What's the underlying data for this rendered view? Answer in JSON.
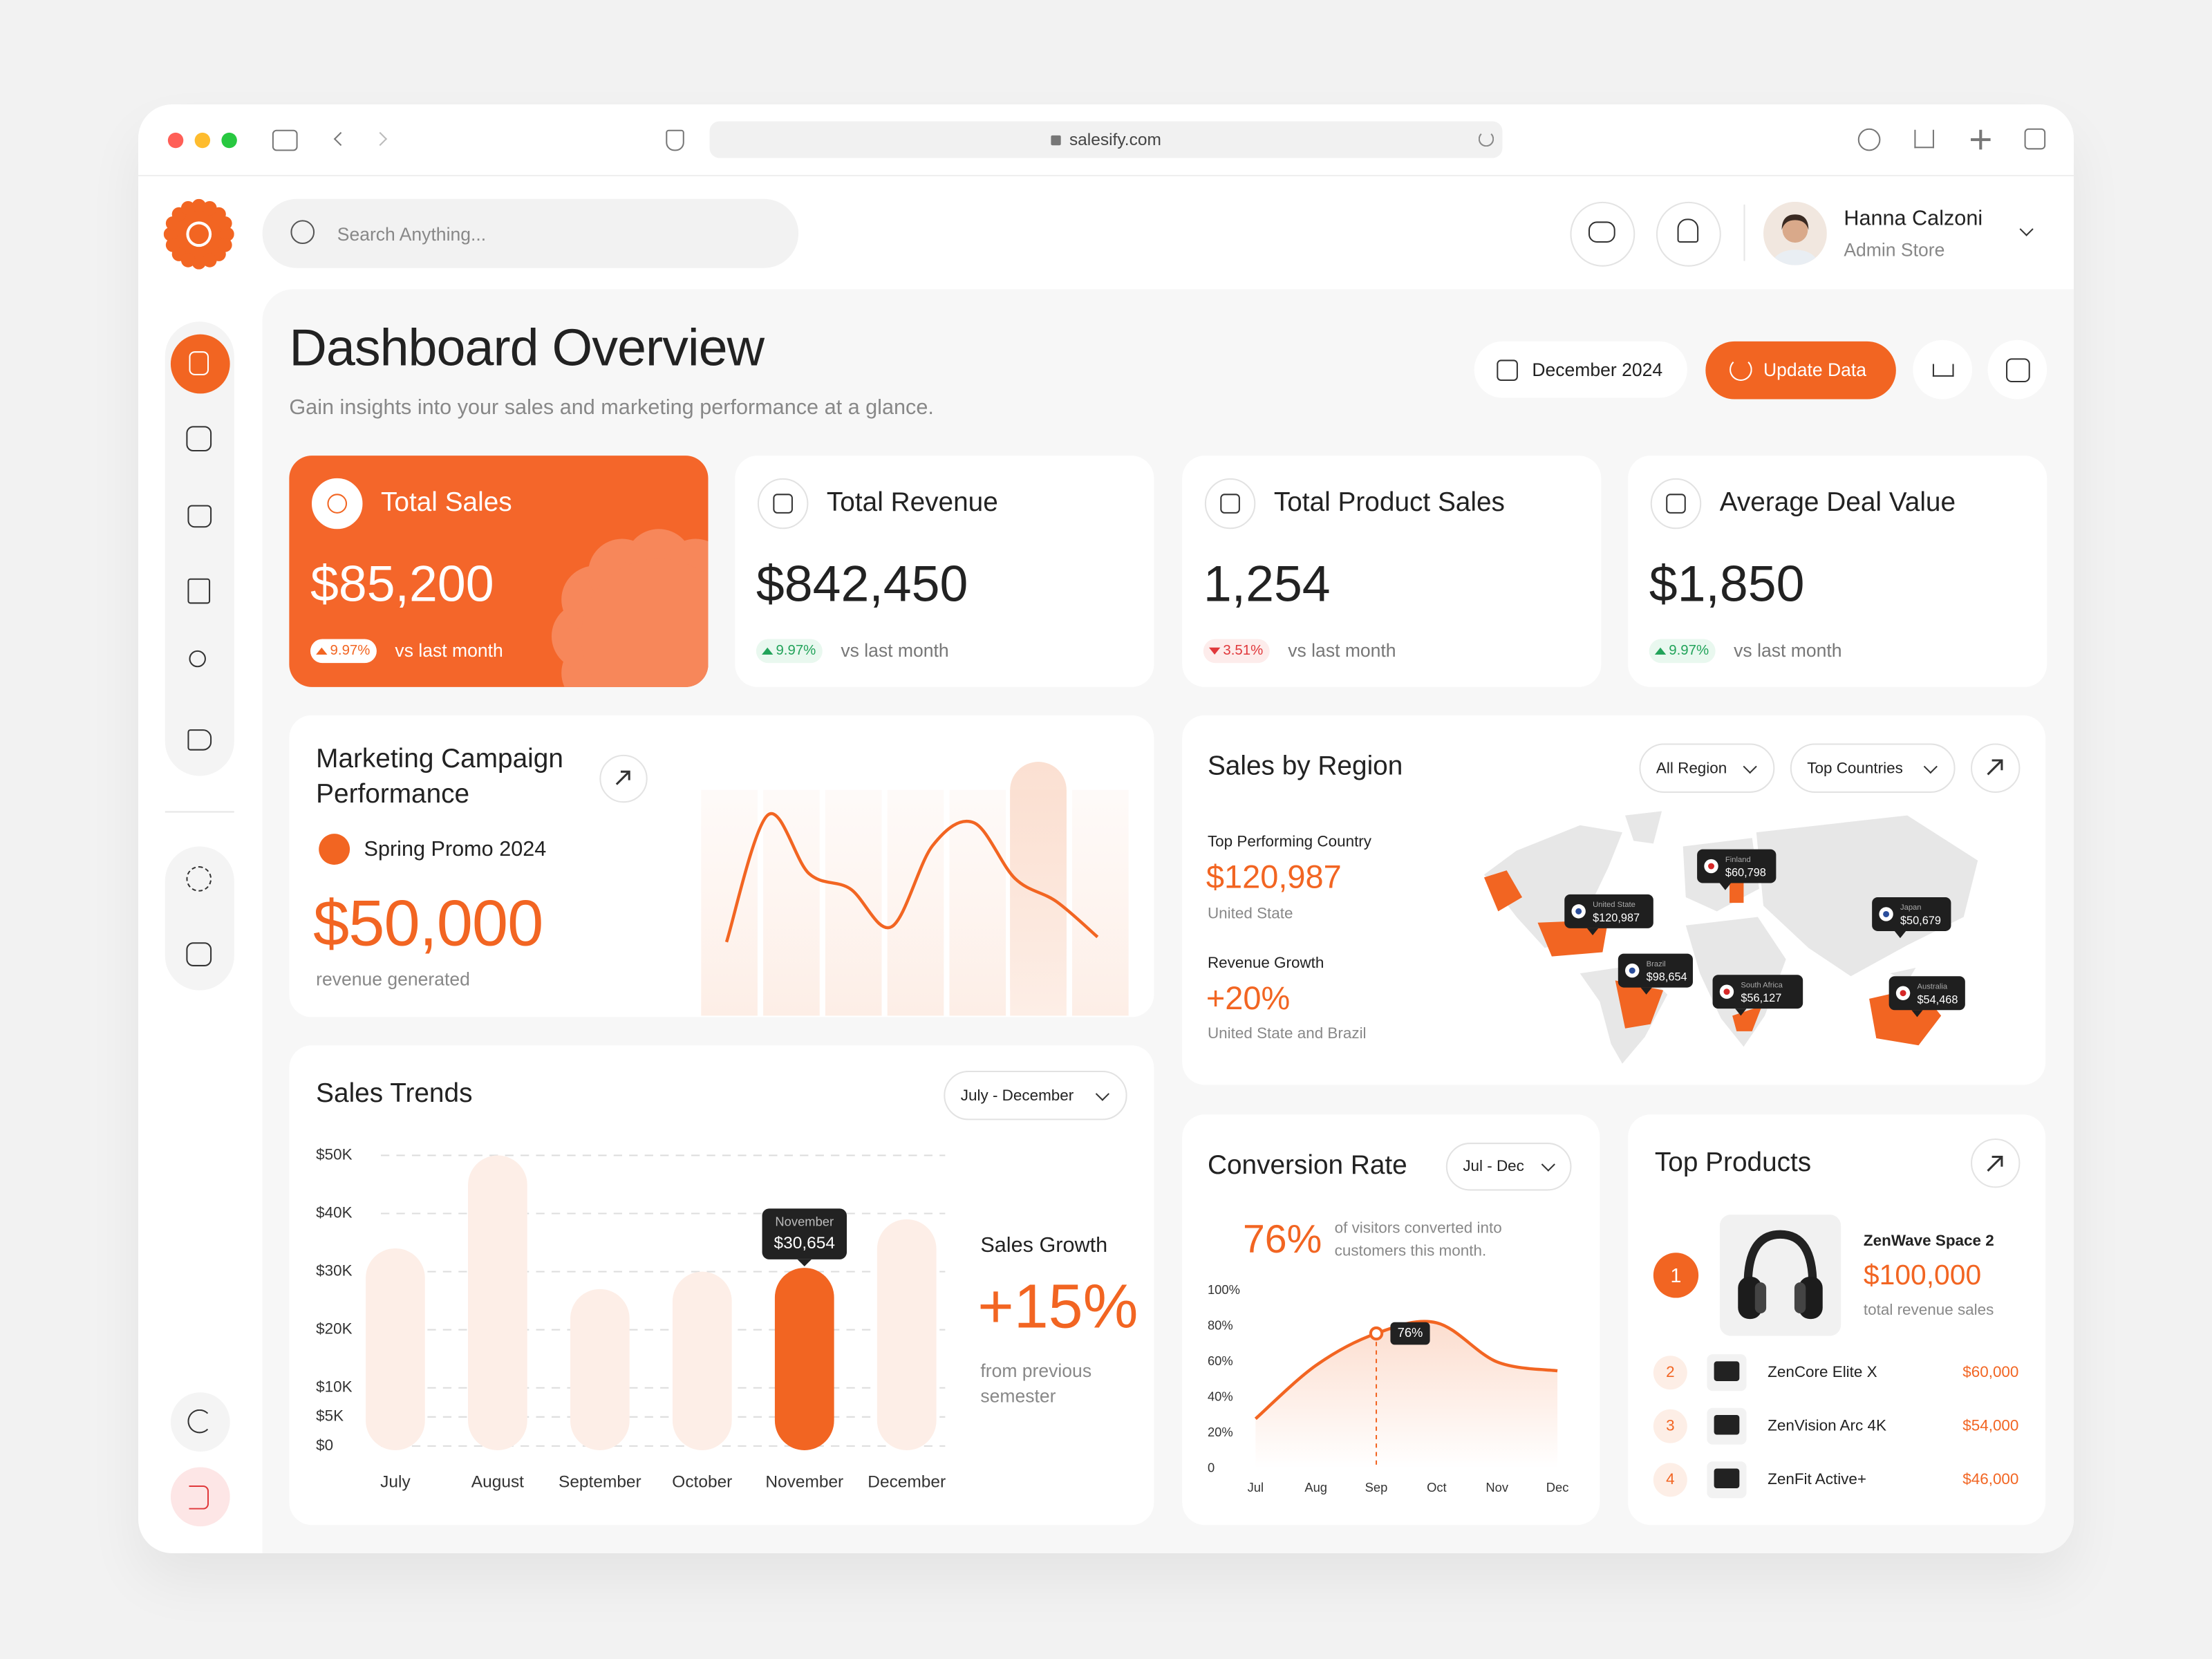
{
  "browser": {
    "url": "salesify.com"
  },
  "search": {
    "placeholder": "Search Anything..."
  },
  "user": {
    "name": "Hanna Calzoni",
    "role": "Admin Store"
  },
  "header": {
    "title": "Dashboard Overview",
    "subtitle": "Gain insights into your sales and marketing performance at a glance.",
    "date": "December 2024",
    "update_button": "Update Data"
  },
  "kpis": [
    {
      "title": "Total Sales",
      "value": "$85,200",
      "change": "9.97%",
      "direction": "up",
      "note": "vs last month"
    },
    {
      "title": "Total Revenue",
      "value": "$842,450",
      "change": "9.97%",
      "direction": "up",
      "note": "vs last month"
    },
    {
      "title": "Total Product Sales",
      "value": "1,254",
      "change": "3.51%",
      "direction": "down",
      "note": "vs last month"
    },
    {
      "title": "Average Deal Value",
      "value": "$1,850",
      "change": "9.97%",
      "direction": "up",
      "note": "vs last month"
    }
  ],
  "marketing": {
    "campaign": "Spring Promo 2024",
    "value": "$50,000",
    "note": "revenue generated"
  },
  "sales_growth": {
    "title": "Sales Growth",
    "value": "+15%",
    "note": "from previous semester"
  },
  "region": {
    "title": "Sales by Region",
    "filters": [
      "All Region",
      "Top Countries"
    ],
    "top_label": "Top Performing Country",
    "top_value": "$120,987",
    "top_country": "United State",
    "growth_label": "Revenue Growth",
    "growth_value": "+20%",
    "growth_countries": "United State and Brazil",
    "pins": [
      {
        "name": "United State",
        "value": "$120,987"
      },
      {
        "name": "Finland",
        "value": "$60,798"
      },
      {
        "name": "Brazil",
        "value": "$98,654"
      },
      {
        "name": "South Africa",
        "value": "$56,127"
      },
      {
        "name": "Japan",
        "value": "$50,679"
      },
      {
        "name": "Australia",
        "value": "$54,468"
      }
    ]
  },
  "conversion": {
    "headline": "76%",
    "note": "of visitors converted into customers this month."
  },
  "top_products": {
    "title": "Top Products",
    "items": [
      {
        "rank": "1",
        "name": "ZenWave Space 2",
        "value": "$100,000",
        "note": "total revenue sales"
      },
      {
        "rank": "2",
        "name": "ZenCore Elite X",
        "value": "$60,000"
      },
      {
        "rank": "3",
        "name": "ZenVision Arc 4K",
        "value": "$54,000"
      },
      {
        "rank": "4",
        "name": "ZenFit Active+",
        "value": "$46,000"
      }
    ]
  },
  "chart_data": [
    {
      "type": "line",
      "title": "Marketing Campaign Performance",
      "values": [
        29,
        79,
        56,
        50,
        35,
        67,
        76,
        54,
        45,
        31
      ],
      "ylim": [
        0,
        100
      ],
      "color": "#f26522"
    },
    {
      "type": "bar",
      "title": "Sales Trends",
      "range": "July - December",
      "categories": [
        "July",
        "August",
        "September",
        "October",
        "November",
        "December"
      ],
      "values": [
        34000,
        50000,
        27000,
        30000,
        30654,
        39000
      ],
      "value_labels": [
        null,
        null,
        null,
        null,
        "$30,654",
        null
      ],
      "colors": [
        "#fdeee7",
        "#fdeee7",
        "#fdeee7",
        "#fdeee7",
        "#f26522",
        "#fdeee7"
      ],
      "ylim": [
        0,
        50000
      ],
      "yticks": [
        {
          "value": 0,
          "label": "$0"
        },
        {
          "value": 5000,
          "label": "$5K"
        },
        {
          "value": 10000,
          "label": "$10K"
        },
        {
          "value": 20000,
          "label": "$20K"
        },
        {
          "value": 30000,
          "label": "$30K"
        },
        {
          "value": 40000,
          "label": "$40K"
        },
        {
          "value": 50000,
          "label": "$50K"
        }
      ],
      "grid": true
    },
    {
      "type": "line",
      "title": "Conversion Rate",
      "range": "Jul - Dec",
      "categories": [
        "Jul",
        "Aug",
        "Sep",
        "Oct",
        "Nov",
        "Dec"
      ],
      "values": [
        28,
        58,
        76,
        82,
        60,
        55
      ],
      "value_labels": [
        null,
        null,
        "76%",
        null,
        null,
        null
      ],
      "ylim": [
        0,
        100
      ],
      "yticks": [
        0,
        {
          "value": 20,
          "label": "20%"
        },
        {
          "value": 40,
          "label": "40%"
        },
        {
          "value": 60,
          "label": "60%"
        },
        {
          "value": 80,
          "label": "80%"
        },
        {
          "value": 100,
          "label": "100%"
        }
      ],
      "color": "#f26522",
      "area": true
    }
  ]
}
